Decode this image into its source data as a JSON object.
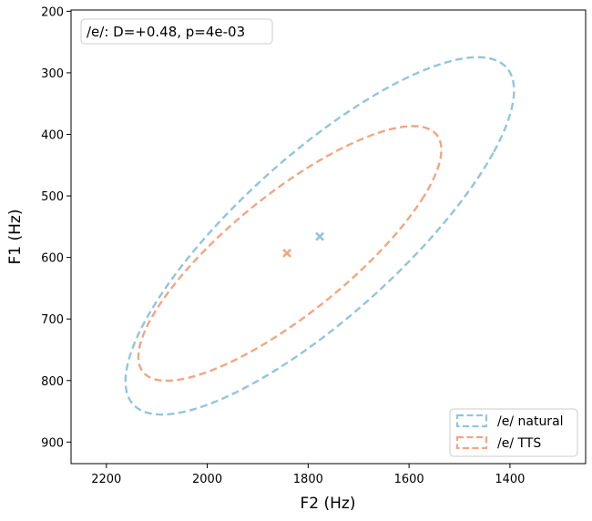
{
  "chart_data": {
    "type": "scatter",
    "title": "",
    "xlabel": "F2 (Hz)",
    "ylabel": "F1 (Hz)",
    "xlim": [
      2270,
      1250
    ],
    "ylim": [
      935,
      198
    ],
    "x_inverted": true,
    "y_inverted": true,
    "xticks": [
      2200,
      2000,
      1800,
      1600,
      1400
    ],
    "yticks": [
      200,
      300,
      400,
      500,
      600,
      700,
      800,
      900
    ],
    "grid": false,
    "annotation": "/e/: D=+0.48, p=4e-03",
    "legend_position": "lower-right",
    "series": [
      {
        "name": "/e/ natural",
        "color": "#92c5de",
        "mean": [
          1777,
          566
        ],
        "ellipse": [
          [
            1600,
            308
          ],
          [
            1433,
            430
          ],
          [
            1950,
            822
          ],
          [
            2125,
            700
          ]
        ]
      },
      {
        "name": "/e/ TTS",
        "color": "#f4a582",
        "mean": [
          1842,
          593
        ],
        "ellipse": [
          [
            1700,
            406
          ],
          [
            1570,
            500
          ],
          [
            1975,
            778
          ],
          [
            2100,
            690
          ]
        ]
      }
    ]
  }
}
